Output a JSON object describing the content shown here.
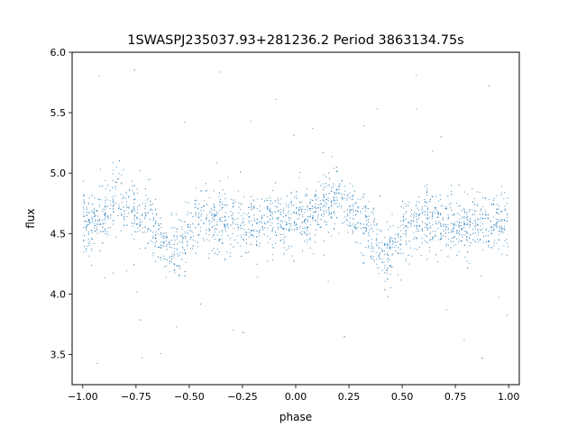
{
  "chart_data": {
    "type": "scatter",
    "title": "1SWASPJ235037.93+281236.2 Period 3863134.75s",
    "xlabel": "phase",
    "ylabel": "flux",
    "xlim": [
      -1.05,
      1.05
    ],
    "ylim": [
      3.25,
      6.0
    ],
    "x_ticks": [
      -1.0,
      -0.75,
      -0.5,
      -0.25,
      0.0,
      0.25,
      0.5,
      0.75,
      1.0
    ],
    "x_tick_labels": [
      "−1.00",
      "−0.75",
      "−0.50",
      "−0.25",
      "0.00",
      "0.25",
      "0.50",
      "0.75",
      "1.00"
    ],
    "y_ticks": [
      3.5,
      4.0,
      4.5,
      5.0,
      5.5,
      6.0
    ],
    "y_tick_labels": [
      "3.5",
      "4.0",
      "4.5",
      "5.0",
      "5.5",
      "6.0"
    ],
    "grid": false,
    "legend": "none",
    "marker_color": "#1f77b4",
    "phase_range": [
      -1.0,
      1.0
    ],
    "baseline_flux": 4.6,
    "max_light_flux": 4.8,
    "max_light_phase": 0.18,
    "min_light_flux": 4.35,
    "min_light_phase": 0.42,
    "typical_scatter": 0.18,
    "outlier_range": [
      3.4,
      5.88
    ]
  }
}
